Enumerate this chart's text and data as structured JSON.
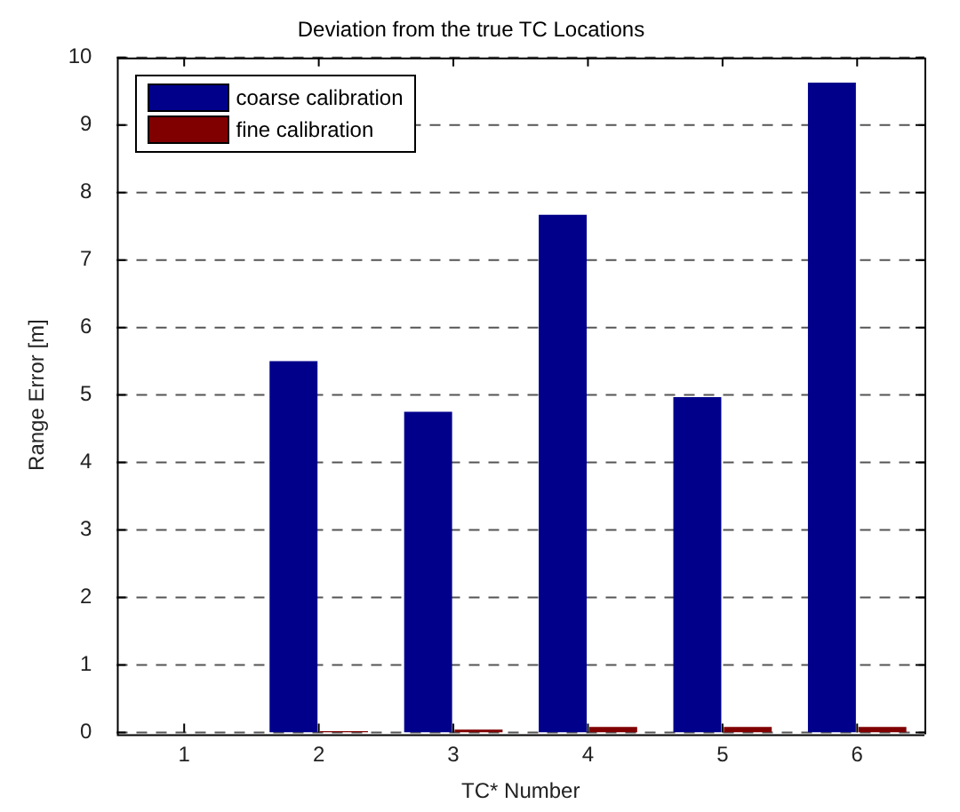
{
  "chart_data": {
    "type": "bar",
    "title": "Deviation from the true TC Locations",
    "xlabel": "TC* Number",
    "ylabel": "Range Error [m]",
    "categories": [
      "1",
      "2",
      "3",
      "4",
      "5",
      "6"
    ],
    "series": [
      {
        "name": "coarse calibration",
        "color": "#00008b",
        "values": [
          0,
          5.5,
          4.75,
          7.67,
          4.97,
          9.63
        ]
      },
      {
        "name": "fine calibration",
        "color": "#800000",
        "values": [
          0,
          0.02,
          0.04,
          0.08,
          0.08,
          0.08
        ]
      }
    ],
    "ylim": [
      0,
      10
    ],
    "yticks": [
      0,
      1,
      2,
      3,
      4,
      5,
      6,
      7,
      8,
      9,
      10
    ],
    "grid": "y",
    "legend": "top left"
  }
}
